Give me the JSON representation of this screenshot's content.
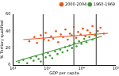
{
  "chart_data": {
    "type": "scatter",
    "x_label": "GDP per capita",
    "y_label": "% Tertiary qualified",
    "log": "x",
    "grid": false,
    "legend": "top-right",
    "xlim": [
      100,
      100000
    ],
    "xticks": [
      {
        "value": 100,
        "label": "10²"
      },
      {
        "value": 1000,
        "label": "10³"
      },
      {
        "value": 10000,
        "label": "10⁴"
      },
      {
        "value": 100000,
        "label": "10⁵"
      }
    ],
    "ylim": [
      0,
      60
    ],
    "yticks": [
      0,
      20,
      40,
      60
    ],
    "vlines": [
      760,
      6000,
      27000
    ],
    "series": [
      {
        "name": "2000-2004",
        "color": "#e8541e",
        "marker": "circle",
        "x": [
          300,
          420,
          500,
          650,
          800,
          900,
          1100,
          1300,
          1500,
          1800,
          2100,
          2500,
          2900,
          3400,
          4000,
          4600,
          5200,
          6000,
          7000,
          8000,
          9500,
          11000,
          13000,
          15000,
          18000,
          21000,
          25000,
          30000,
          36000,
          45000
        ],
        "values": [
          28,
          33,
          26,
          35,
          30,
          38,
          29,
          34,
          31,
          40,
          27,
          36,
          33,
          42,
          30,
          37,
          35,
          45,
          32,
          39,
          36,
          43,
          34,
          41,
          38,
          46,
          35,
          40,
          44,
          37
        ],
        "fit_x": [
          200,
          60000
        ],
        "fit_values": [
          30,
          37.5
        ]
      },
      {
        "name": "1960-1969",
        "color": "#3f9a34",
        "marker": "circle",
        "x": [
          150,
          200,
          260,
          330,
          400,
          480,
          560,
          650,
          750,
          900,
          1050,
          1200,
          1400,
          1700,
          2000,
          2400,
          2800,
          3300,
          3900,
          4500,
          5300,
          6200,
          7200,
          8500,
          10000,
          12000,
          14000,
          17000,
          21000,
          26000
        ],
        "values": [
          3,
          6,
          2,
          8,
          5,
          10,
          7,
          4,
          12,
          9,
          14,
          11,
          8,
          16,
          13,
          18,
          15,
          21,
          17,
          23,
          20,
          26,
          22,
          28,
          25,
          31,
          27,
          33,
          30,
          36
        ],
        "fit_x": [
          120,
          40000
        ],
        "fit_values": [
          4,
          34
        ]
      }
    ]
  }
}
